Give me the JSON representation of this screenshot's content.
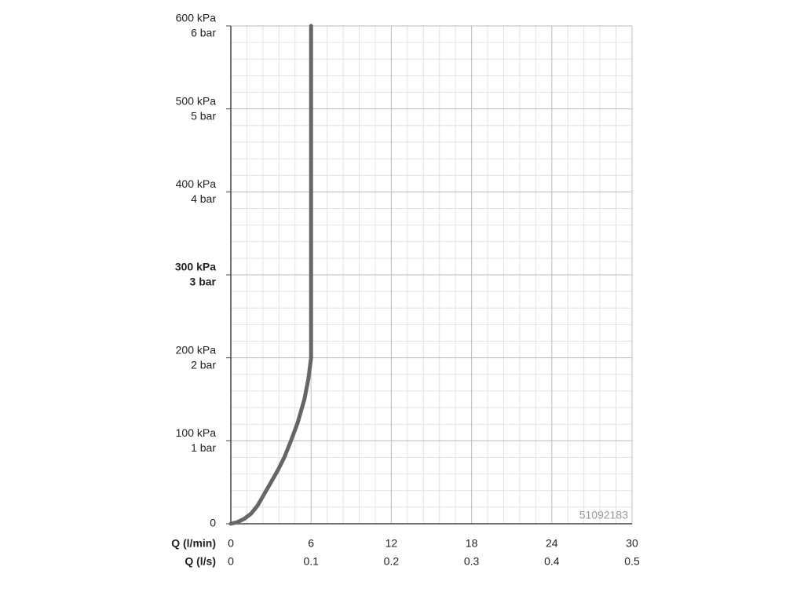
{
  "chart_data": {
    "type": "line",
    "x_label": "Q (l/min)",
    "x2_label": "Q (l/s)",
    "annotation": "51092183",
    "xlim": [
      0,
      30
    ],
    "xticks": [
      0,
      6,
      12,
      18,
      24,
      30
    ],
    "x2lim": [
      0,
      0.5
    ],
    "x2ticks": [
      0,
      0.1,
      0.2,
      0.3,
      0.4,
      0.5
    ],
    "ylim": [
      0,
      600
    ],
    "yticks": [
      0,
      {
        "value": 100,
        "label": "100 kPa"
      },
      {
        "value": 200,
        "label": "200 kPa"
      },
      {
        "value": 300,
        "label": "300 kPa"
      },
      {
        "value": 400,
        "label": "400 kPa"
      },
      {
        "value": 500,
        "label": "500 kPa"
      },
      {
        "value": 600,
        "label": "600 kPa"
      }
    ],
    "y2lim": [
      0,
      6
    ],
    "y2ticks": [
      {
        "value": 1,
        "label": "1 bar"
      },
      {
        "value": 2,
        "label": "2 bar"
      },
      {
        "value": 3,
        "label": "3 bar"
      },
      {
        "value": 4,
        "label": "4 bar"
      },
      {
        "value": 5,
        "label": "5 bar"
      },
      {
        "value": 6,
        "label": "6 bar"
      }
    ],
    "highlight_ytick_index": 3,
    "grid": true,
    "minor_divisions": 5,
    "series": [
      {
        "color": "#666666",
        "x": [
          0,
          0.5,
          1,
          1.5,
          2,
          2.5,
          3,
          3.5,
          4,
          4.5,
          5,
          5.5,
          5.8,
          6,
          6
        ],
        "values": [
          0,
          2,
          6,
          12,
          22,
          36,
          50,
          64,
          80,
          100,
          122,
          150,
          175,
          200,
          600
        ]
      }
    ]
  }
}
